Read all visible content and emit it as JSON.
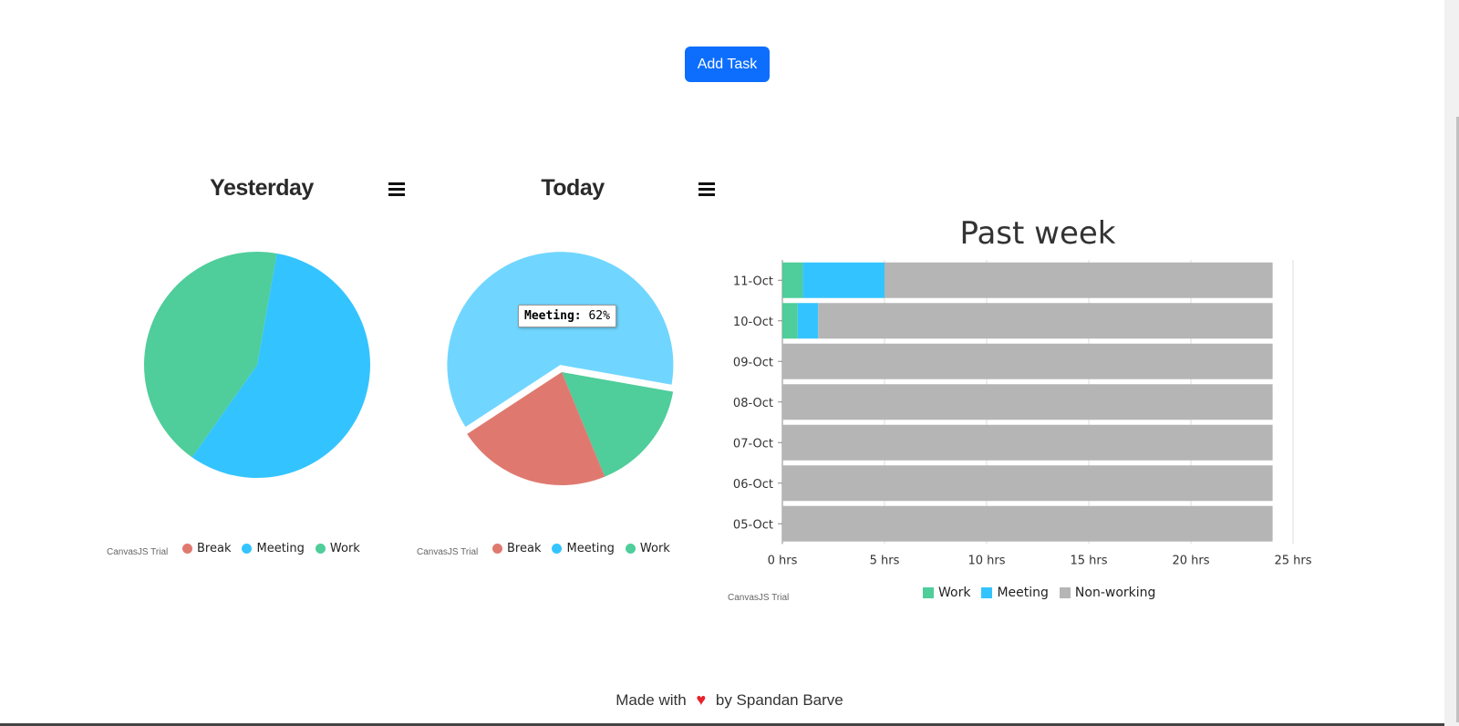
{
  "toolbar": {
    "add_task_label": "Add Task"
  },
  "menu_icon": "hamburger-menu-icon",
  "charts": {
    "yesterday": {
      "title": "Yesterday",
      "legend": [
        "Break",
        "Meeting",
        "Work"
      ],
      "trial": "CanvasJS Trial"
    },
    "today": {
      "title": "Today",
      "legend": [
        "Break",
        "Meeting",
        "Work"
      ],
      "trial": "CanvasJS Trial",
      "tooltip": {
        "label": "Meeting:",
        "value": "62%"
      }
    },
    "week": {
      "title": "Past week",
      "legend": [
        "Work",
        "Meeting",
        "Non-working"
      ],
      "trial": "CanvasJS Trial"
    }
  },
  "colors": {
    "break": "#df7970",
    "meeting": "#33c4ff",
    "meeting_highlight": "#70d6ff",
    "work": "#4fcd9a",
    "nonworking": "#b5b5b5"
  },
  "chart_data": [
    {
      "type": "pie",
      "title": "Yesterday",
      "labels": [
        "Break",
        "Meeting",
        "Work"
      ],
      "values": [
        0,
        57,
        43
      ]
    },
    {
      "type": "pie",
      "title": "Today",
      "labels": [
        "Break",
        "Meeting",
        "Work"
      ],
      "values": [
        22,
        62,
        16
      ],
      "exploded": "Meeting"
    },
    {
      "type": "bar",
      "orientation": "horizontal",
      "stacked": true,
      "title": "Past week",
      "categories": [
        "11-Oct",
        "10-Oct",
        "09-Oct",
        "08-Oct",
        "07-Oct",
        "06-Oct",
        "05-Oct"
      ],
      "series": [
        {
          "name": "Work",
          "values": [
            1,
            0.75,
            0,
            0,
            0,
            0,
            0
          ]
        },
        {
          "name": "Meeting",
          "values": [
            4,
            1,
            0,
            0,
            0,
            0,
            0
          ]
        },
        {
          "name": "Non-working",
          "values": [
            19,
            22.25,
            24,
            24,
            24,
            24,
            24
          ]
        }
      ],
      "xlim": [
        0,
        25
      ],
      "xticks": [
        "0 hrs",
        "5 hrs",
        "10 hrs",
        "15 hrs",
        "20 hrs",
        "25 hrs"
      ]
    }
  ],
  "footer": {
    "prefix": "Made with",
    "heart": "♥",
    "suffix": "by Spandan Barve"
  }
}
